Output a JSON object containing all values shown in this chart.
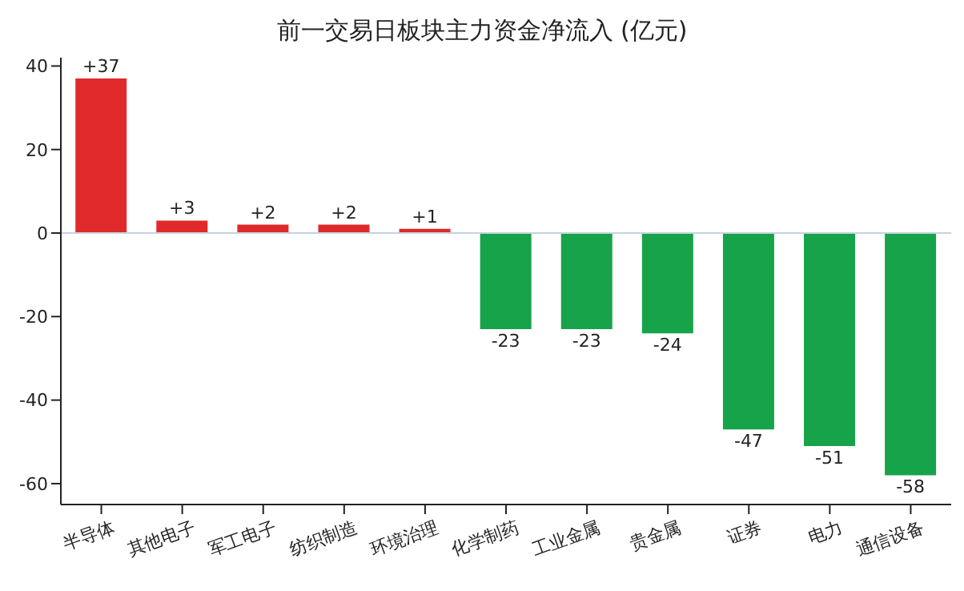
{
  "chart_data": {
    "type": "bar",
    "title": "前一交易日板块主力资金净流入 (亿元)",
    "categories": [
      "半导体",
      "其他电子",
      "军工电子",
      "纺织制造",
      "环境治理",
      "化学制药",
      "工业金属",
      "贵金属",
      "证券",
      "电力",
      "通信设备"
    ],
    "values": [
      37,
      3,
      2,
      2,
      1,
      -23,
      -23,
      -24,
      -47,
      -51,
      -58
    ],
    "colors": [
      "#e0292b",
      "#e0292b",
      "#e0292b",
      "#e0292b",
      "#e0292b",
      "#17a34a",
      "#17a34a",
      "#17a34a",
      "#17a34a",
      "#17a34a",
      "#17a34a"
    ],
    "value_labels": [
      "+37",
      "+3",
      "+2",
      "+2",
      "+1",
      "-23",
      "-23",
      "-24",
      "-47",
      "-51",
      "-58"
    ],
    "ylim": [
      -65,
      42
    ],
    "yticks": [
      -60,
      -40,
      -20,
      0,
      20,
      40
    ],
    "ref_lines": [
      {
        "axis": "y",
        "value": 0,
        "color": "#c5d3de"
      }
    ],
    "grid": false,
    "legend": false
  }
}
